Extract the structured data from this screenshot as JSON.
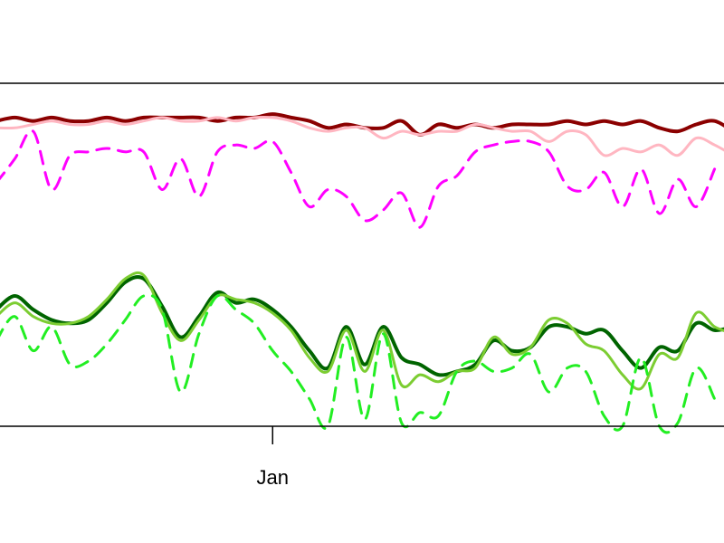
{
  "chart_data": {
    "type": "line",
    "title": "",
    "xlabel": "",
    "ylabel": "",
    "x_ticks": [
      {
        "label": "Jan",
        "x": 30
      }
    ],
    "xlim": [
      0,
      80
    ],
    "ylim": [
      0,
      100
    ],
    "grid": false,
    "legend": "none",
    "series": [
      {
        "color": "#8B0000",
        "dash": "solid",
        "width": 4,
        "x": [
          0,
          2,
          4,
          6,
          8,
          10,
          12,
          14,
          16,
          18,
          20,
          22,
          24,
          26,
          28,
          30,
          32,
          34,
          36,
          38,
          40,
          42,
          44,
          46,
          48,
          50,
          52,
          54,
          56,
          58,
          60,
          62,
          64,
          66,
          68,
          70,
          72,
          74,
          76,
          78,
          80
        ],
        "y": [
          89,
          90,
          89,
          90,
          89,
          89,
          90,
          89,
          90,
          90,
          90,
          90,
          89,
          90,
          90,
          91,
          90,
          89,
          87,
          88,
          87,
          87,
          89,
          85,
          88,
          87,
          88,
          87,
          88,
          88,
          88,
          89,
          88,
          89,
          88,
          89,
          87,
          86,
          88,
          89,
          86
        ]
      },
      {
        "color": "#FFB6C1",
        "dash": "solid",
        "width": 3,
        "x": [
          0,
          2,
          4,
          6,
          8,
          10,
          12,
          14,
          16,
          18,
          20,
          22,
          24,
          26,
          28,
          30,
          32,
          34,
          36,
          38,
          40,
          42,
          44,
          46,
          48,
          50,
          52,
          54,
          56,
          58,
          60,
          62,
          64,
          66,
          68,
          70,
          72,
          74,
          76,
          78,
          80
        ],
        "y": [
          87,
          87,
          88,
          89,
          88,
          88,
          89,
          88,
          89,
          90,
          89,
          89,
          90,
          89,
          90,
          90,
          89,
          87,
          86,
          87,
          87,
          84,
          86,
          85,
          86,
          86,
          88,
          87,
          86,
          86,
          83,
          86,
          85,
          79,
          81,
          80,
          82,
          79,
          84,
          82,
          79
        ]
      },
      {
        "color": "#FF00FF",
        "dash": "dashed",
        "width": 3,
        "x": [
          0,
          2,
          4,
          6,
          8,
          10,
          12,
          14,
          16,
          18,
          20,
          22,
          24,
          26,
          28,
          30,
          32,
          34,
          36,
          38,
          40,
          42,
          44,
          46,
          48,
          50,
          52,
          54,
          56,
          58,
          60,
          62,
          64,
          66,
          68,
          70,
          72,
          74,
          76,
          78
        ],
        "y": [
          71,
          78,
          86,
          69,
          79,
          80,
          81,
          80,
          80,
          69,
          78,
          67,
          80,
          82,
          81,
          83,
          74,
          64,
          69,
          67,
          60,
          63,
          68,
          58,
          70,
          73,
          80,
          82,
          83,
          83,
          80,
          70,
          69,
          74,
          64,
          75,
          62,
          72,
          64,
          75
        ]
      },
      {
        "color": "#006400",
        "dash": "solid",
        "width": 4,
        "x": [
          0,
          2,
          4,
          6,
          8,
          10,
          12,
          14,
          16,
          18,
          20,
          22,
          24,
          26,
          28,
          30,
          32,
          34,
          36,
          38,
          40,
          42,
          44,
          46,
          48,
          50,
          52,
          54,
          56,
          58,
          60,
          62,
          64,
          66,
          68,
          70,
          72,
          74,
          76,
          78,
          80
        ],
        "y": [
          34,
          38,
          34,
          31,
          30,
          31,
          36,
          42,
          43,
          35,
          26,
          32,
          39,
          36,
          37,
          34,
          29,
          22,
          17,
          29,
          18,
          29,
          20,
          18,
          15,
          16,
          18,
          25,
          22,
          23,
          29,
          29,
          27,
          28,
          22,
          17,
          23,
          22,
          30,
          28,
          29
        ]
      },
      {
        "color": "#7CCD32",
        "dash": "solid",
        "width": 3,
        "x": [
          0,
          2,
          4,
          6,
          8,
          10,
          12,
          14,
          16,
          18,
          20,
          22,
          24,
          26,
          28,
          30,
          32,
          34,
          36,
          38,
          40,
          42,
          44,
          46,
          48,
          50,
          52,
          54,
          56,
          58,
          60,
          62,
          64,
          66,
          68,
          70,
          72,
          74,
          76,
          78,
          80
        ],
        "y": [
          32,
          36,
          32,
          30,
          30,
          32,
          37,
          43,
          44,
          33,
          25,
          31,
          38,
          37,
          36,
          33,
          28,
          20,
          16,
          28,
          16,
          28,
          12,
          15,
          13,
          16,
          17,
          26,
          21,
          23,
          31,
          30,
          24,
          22,
          15,
          11,
          21,
          20,
          33,
          29,
          27
        ]
      },
      {
        "color": "#22EE22",
        "dash": "dashed",
        "width": 3,
        "x": [
          0,
          2,
          4,
          6,
          8,
          10,
          12,
          14,
          16,
          18,
          20,
          22,
          24,
          26,
          28,
          30,
          32,
          34,
          36,
          38,
          40,
          42,
          44,
          46,
          48,
          50,
          52,
          54,
          56,
          58,
          60,
          62,
          64,
          66,
          68,
          70,
          72,
          74,
          76,
          78
        ],
        "y": [
          25,
          32,
          22,
          29,
          18,
          19,
          24,
          31,
          38,
          34,
          10,
          27,
          38,
          34,
          30,
          22,
          16,
          8,
          0,
          26,
          2,
          27,
          1,
          4,
          3,
          16,
          19,
          16,
          17,
          21,
          10,
          17,
          16,
          3,
          0,
          20,
          0,
          1,
          17,
          8
        ]
      }
    ]
  }
}
